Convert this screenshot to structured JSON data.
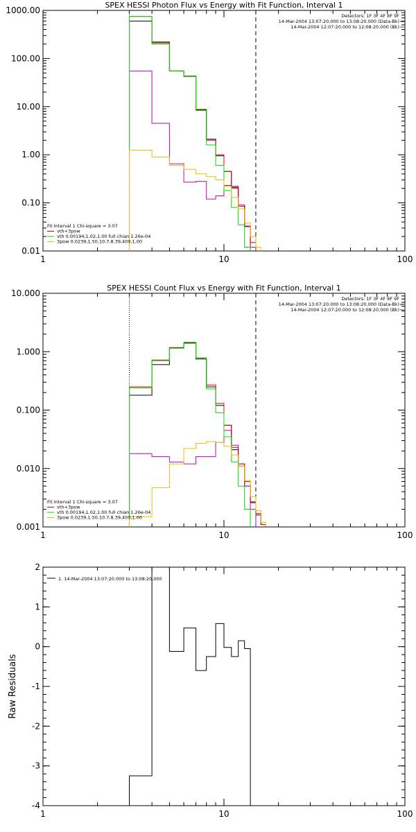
{
  "chart_data": [
    {
      "type": "line",
      "title": "SPEX HESSI Photon Flux vs Energy with Fit Function, Interval 1",
      "xscale": "log",
      "yscale": "log",
      "xlim": [
        1,
        100
      ],
      "ylim": [
        0.01,
        1000
      ],
      "x_ticks": [
        "1",
        "10",
        "100"
      ],
      "x_tick_values": [
        1,
        10,
        100
      ],
      "y_ticks": [
        "0.01",
        "0.10",
        "1.00",
        "10.00",
        "100.00",
        "1000.00"
      ],
      "y_tick_values": [
        0.01,
        0.1,
        1,
        10,
        100,
        1000
      ],
      "vlines": [
        {
          "x": 3,
          "style": "dotted"
        },
        {
          "x": 15,
          "style": "dashed"
        }
      ],
      "legend_top": [
        "Detectors: 1F 3F 4F 8F 9F",
        "14-Mar-2004 13:07:20.000 to 13:08:20.000 (Data-Bk)",
        "14-Mar-2004 12:07:20.000 to 12:08:20.000 (Bk)"
      ],
      "legend_bottom": [
        "Fit Interval 1    Chi-square = 3.07",
        "vth+3pow",
        "vth 0.00194,1.02,1.00  full chian 1.26e-04",
        "3pow 0.0239,1.50,10.7,8.39,400,1.00"
      ],
      "edges": [
        3,
        4,
        5,
        6,
        7,
        8,
        9,
        10,
        11,
        12,
        13,
        14,
        15,
        16,
        17,
        18
      ],
      "series": [
        {
          "name": "14-Mar-2004 13:07:20.000 to 13:08:20.000 (Data-Bk)",
          "color": "#000000",
          "values": [
            600,
            220,
            55,
            42,
            8.5,
            2.1,
            0.95,
            0.45,
            0.21,
            0.085,
            0.032,
            null,
            null,
            null,
            null
          ]
        },
        {
          "name": "14-Mar-2004 12:07:20.000 to 12:08:20.000 (Bk)",
          "color": "#c000c0",
          "values": [
            55,
            4.5,
            0.65,
            0.27,
            0.28,
            0.12,
            0.14,
            0.23,
            0.2,
            0.085,
            0.032,
            0.012,
            null,
            null,
            null
          ]
        },
        {
          "name": "vth+3pow",
          "color": "#d00000",
          "values": [
            750,
            210,
            55,
            43,
            8.8,
            2.0,
            1.0,
            0.45,
            0.22,
            0.09,
            0.033,
            0.015,
            null,
            null,
            null
          ]
        },
        {
          "name": "vth",
          "color": "#00dd00",
          "values": [
            750,
            200,
            55,
            42,
            8.3,
            1.6,
            0.6,
            0.18,
            0.08,
            0.035,
            0.012,
            null,
            null,
            null,
            null
          ]
        },
        {
          "name": "3pow",
          "color": "#e6c000",
          "values": [
            1.25,
            0.9,
            0.6,
            0.5,
            0.4,
            0.35,
            0.3,
            0.22,
            0.13,
            0.075,
            0.038,
            0.02,
            0.012,
            null,
            null
          ]
        }
      ]
    },
    {
      "type": "line",
      "title": "SPEX HESSI Count Flux vs Energy with Fit Function, Interval 1",
      "xscale": "log",
      "yscale": "log",
      "xlim": [
        1,
        100
      ],
      "ylim": [
        0.001,
        10
      ],
      "x_ticks": [
        "1",
        "10",
        "100"
      ],
      "x_tick_values": [
        1,
        10,
        100
      ],
      "y_ticks": [
        "0.001",
        "0.010",
        "0.100",
        "1.000",
        "10.000"
      ],
      "y_tick_values": [
        0.001,
        0.01,
        0.1,
        1,
        10
      ],
      "vlines": [
        {
          "x": 3,
          "style": "dotted"
        },
        {
          "x": 15,
          "style": "dashed"
        }
      ],
      "legend_top": [
        "Detectors: 1F 3F 4F 8F 9F",
        "14-Mar-2004 13:07:20.000 to 13:08:20.000 (Data-Bk)",
        "14-Mar-2004 12:07:20.000 to 12:08:20.000 (Bk)"
      ],
      "legend_bottom": [
        "Fit Interval 1    Chi-square = 3.07",
        "vth+3pow",
        "vth 0.00194,1.02,1.00  full chian 1.26e-04",
        "3pow 0.0239,1.50,10.7,8.39,400,1.00"
      ],
      "edges": [
        3,
        4,
        5,
        6,
        7,
        8,
        9,
        10,
        11,
        12,
        13,
        14,
        15,
        16,
        17,
        18
      ],
      "series": [
        {
          "name": "14-Mar-2004 13:07:20.000 to 13:08:20.000 (Data-Bk)",
          "color": "#000000",
          "values": [
            0.18,
            0.6,
            1.15,
            1.4,
            0.75,
            0.25,
            0.12,
            0.055,
            0.021,
            0.011,
            0.005,
            0.0026,
            0.0016,
            0.0011,
            null
          ]
        },
        {
          "name": "14-Mar-2004 12:07:20.000 to 12:08:20.000 (Bk)",
          "color": "#c000c0",
          "values": [
            0.018,
            0.016,
            0.013,
            0.012,
            0.016,
            0.016,
            0.028,
            0.045,
            0.025,
            0.012,
            0.005,
            0.002,
            null,
            null,
            null
          ]
        },
        {
          "name": "vth+3pow",
          "color": "#d00000",
          "values": [
            0.25,
            0.72,
            1.18,
            1.45,
            0.78,
            0.27,
            0.13,
            0.055,
            0.023,
            0.012,
            0.006,
            0.0027,
            0.0017,
            0.0011,
            null
          ]
        },
        {
          "name": "vth",
          "color": "#00dd00",
          "values": [
            0.24,
            0.7,
            1.15,
            1.45,
            0.78,
            0.23,
            0.09,
            0.035,
            0.013,
            0.005,
            0.002,
            null,
            null,
            null,
            null
          ]
        },
        {
          "name": "3pow",
          "color": "#e6c000",
          "values": [
            0.0015,
            0.0047,
            0.012,
            0.022,
            0.027,
            0.029,
            0.028,
            0.024,
            0.017,
            0.011,
            0.0062,
            0.0033,
            0.0019,
            0.0012,
            null
          ]
        }
      ]
    },
    {
      "type": "line",
      "title": "",
      "xlabel": "",
      "ylabel": "Raw Residuals",
      "xscale": "log",
      "yscale": "linear",
      "xlim": [
        1,
        100
      ],
      "ylim": [
        -4,
        2
      ],
      "x_ticks": [
        "1",
        "10",
        "100"
      ],
      "x_tick_values": [
        1,
        10,
        100
      ],
      "y_ticks": [
        "2",
        "1",
        "0",
        "-1",
        "-2",
        "-3",
        "-4"
      ],
      "y_tick_values": [
        2,
        1,
        0,
        -1,
        -2,
        -3,
        -4
      ],
      "legend": [
        "1. 14-Mar-2004 13:07:20.000 to 13:08:20.000"
      ],
      "edges": [
        3,
        4,
        5,
        6,
        7,
        8,
        9,
        10,
        11,
        12,
        13,
        14,
        15
      ],
      "series": [
        {
          "name": "1. 14-Mar-2004 13:07:20.000 to 13:08:20.000",
          "color": "#000000",
          "values": [
            -3.25,
            2.05,
            -0.12,
            0.47,
            -0.6,
            -0.25,
            0.58,
            -0.02,
            -0.25,
            0.15,
            -0.05,
            null
          ]
        }
      ]
    }
  ]
}
